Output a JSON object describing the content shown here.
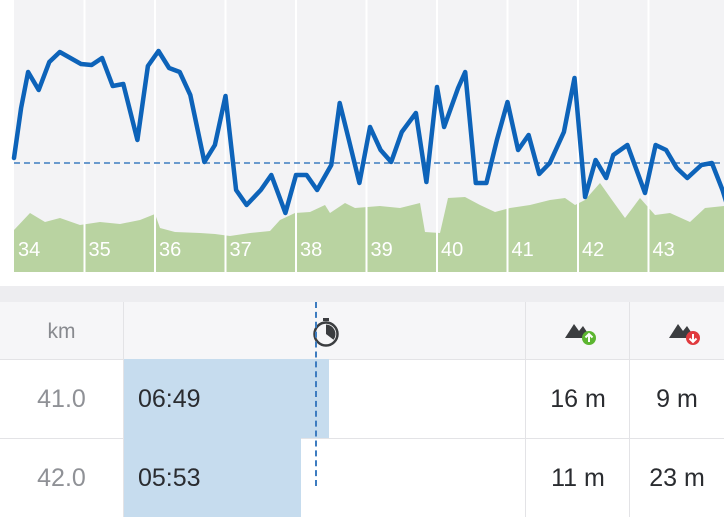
{
  "chart_data": {
    "type": "line",
    "km_labels": [
      "34",
      "35",
      "36",
      "37",
      "38",
      "39",
      "40",
      "41",
      "42",
      "43"
    ],
    "pace_series": [
      {
        "x": 34.0,
        "y": 158
      },
      {
        "x": 34.1,
        "y": 108
      },
      {
        "x": 34.2,
        "y": 72
      },
      {
        "x": 34.35,
        "y": 90
      },
      {
        "x": 34.5,
        "y": 62
      },
      {
        "x": 34.65,
        "y": 52
      },
      {
        "x": 34.8,
        "y": 58
      },
      {
        "x": 34.95,
        "y": 64
      },
      {
        "x": 35.1,
        "y": 65
      },
      {
        "x": 35.25,
        "y": 58
      },
      {
        "x": 35.4,
        "y": 86
      },
      {
        "x": 35.55,
        "y": 84
      },
      {
        "x": 35.75,
        "y": 140
      },
      {
        "x": 35.9,
        "y": 66
      },
      {
        "x": 36.05,
        "y": 51
      },
      {
        "x": 36.2,
        "y": 68
      },
      {
        "x": 36.35,
        "y": 72
      },
      {
        "x": 36.5,
        "y": 95
      },
      {
        "x": 36.7,
        "y": 162
      },
      {
        "x": 36.85,
        "y": 145
      },
      {
        "x": 37.0,
        "y": 96
      },
      {
        "x": 37.15,
        "y": 190
      },
      {
        "x": 37.3,
        "y": 205
      },
      {
        "x": 37.5,
        "y": 190
      },
      {
        "x": 37.65,
        "y": 175
      },
      {
        "x": 37.85,
        "y": 213
      },
      {
        "x": 38.0,
        "y": 175
      },
      {
        "x": 38.15,
        "y": 175
      },
      {
        "x": 38.3,
        "y": 190
      },
      {
        "x": 38.5,
        "y": 165
      },
      {
        "x": 38.62,
        "y": 103
      },
      {
        "x": 38.75,
        "y": 140
      },
      {
        "x": 38.9,
        "y": 183
      },
      {
        "x": 39.05,
        "y": 127
      },
      {
        "x": 39.2,
        "y": 150
      },
      {
        "x": 39.35,
        "y": 162
      },
      {
        "x": 39.5,
        "y": 132
      },
      {
        "x": 39.7,
        "y": 113
      },
      {
        "x": 39.85,
        "y": 182
      },
      {
        "x": 40.0,
        "y": 87
      },
      {
        "x": 40.1,
        "y": 127
      },
      {
        "x": 40.3,
        "y": 88
      },
      {
        "x": 40.4,
        "y": 72
      },
      {
        "x": 40.55,
        "y": 183
      },
      {
        "x": 40.7,
        "y": 183
      },
      {
        "x": 40.85,
        "y": 140
      },
      {
        "x": 41.0,
        "y": 102
      },
      {
        "x": 41.15,
        "y": 150
      },
      {
        "x": 41.3,
        "y": 135
      },
      {
        "x": 41.45,
        "y": 174
      },
      {
        "x": 41.6,
        "y": 163
      },
      {
        "x": 41.8,
        "y": 132
      },
      {
        "x": 41.95,
        "y": 78
      },
      {
        "x": 42.1,
        "y": 197
      },
      {
        "x": 42.25,
        "y": 160
      },
      {
        "x": 42.4,
        "y": 178
      },
      {
        "x": 42.5,
        "y": 155
      },
      {
        "x": 42.7,
        "y": 145
      },
      {
        "x": 42.95,
        "y": 193
      },
      {
        "x": 43.1,
        "y": 145
      },
      {
        "x": 43.25,
        "y": 150
      },
      {
        "x": 43.4,
        "y": 168
      },
      {
        "x": 43.55,
        "y": 178
      },
      {
        "x": 43.75,
        "y": 165
      },
      {
        "x": 43.9,
        "y": 163
      },
      {
        "x": 44.05,
        "y": 190
      },
      {
        "x": 44.15,
        "y": 213
      },
      {
        "x": 44.3,
        "y": 215
      }
    ],
    "average_y": 163,
    "colors": {
      "line": "#0d63b9",
      "average": "#3d7cc0",
      "elevation_fill": "#b9d3a1",
      "gridline": "#ffffff",
      "plot_background": "#f3f3f5",
      "km_label": "#ffffff"
    }
  },
  "table": {
    "header": {
      "km": "km",
      "pace_icon": "stopwatch-icon",
      "gain_icon": "elevation-gain-icon",
      "loss_icon": "elevation-loss-icon"
    },
    "rows": [
      {
        "km": "41.0",
        "pace": "06:49",
        "pace_fraction": 0.51,
        "gain": "16 m",
        "loss": "9 m"
      },
      {
        "km": "42.0",
        "pace": "05:53",
        "pace_fraction": 0.44,
        "gain": "11 m",
        "loss": "23 m"
      }
    ],
    "colors": {
      "pace_bar": "#c6dcee",
      "gain_arrow": "#5cb531",
      "loss_arrow": "#e03a3e",
      "mountain": "#3b3d40"
    }
  }
}
